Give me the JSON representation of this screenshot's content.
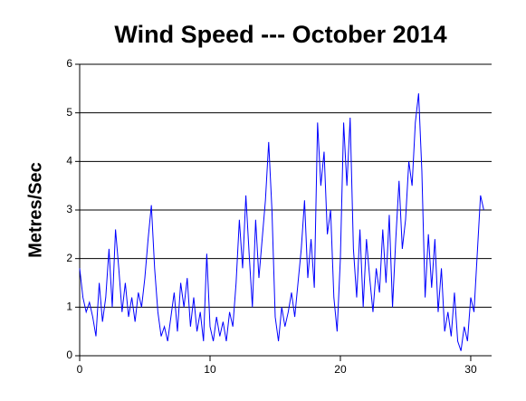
{
  "chart_data": {
    "type": "line",
    "title": "Wind Speed --- October 2014",
    "y_label": "Metres/Sec",
    "x": [
      0,
      0.25,
      0.5,
      0.75,
      1,
      1.25,
      1.5,
      1.75,
      2,
      2.25,
      2.5,
      2.75,
      3,
      3.25,
      3.5,
      3.75,
      4,
      4.25,
      4.5,
      4.75,
      5,
      5.25,
      5.5,
      5.75,
      6,
      6.25,
      6.5,
      6.75,
      7,
      7.25,
      7.5,
      7.75,
      8,
      8.25,
      8.5,
      8.75,
      9,
      9.25,
      9.5,
      9.75,
      10,
      10.25,
      10.5,
      10.75,
      11,
      11.25,
      11.5,
      11.75,
      12,
      12.25,
      12.5,
      12.75,
      13,
      13.25,
      13.5,
      13.75,
      14,
      14.25,
      14.5,
      14.75,
      15,
      15.25,
      15.5,
      15.75,
      16,
      16.25,
      16.5,
      16.75,
      17,
      17.25,
      17.5,
      17.75,
      18,
      18.25,
      18.5,
      18.75,
      19,
      19.25,
      19.5,
      19.75,
      20,
      20.25,
      20.5,
      20.75,
      21,
      21.25,
      21.5,
      21.75,
      22,
      22.25,
      22.5,
      22.75,
      23,
      23.25,
      23.5,
      23.75,
      24,
      24.25,
      24.5,
      24.75,
      25,
      25.25,
      25.5,
      25.75,
      26,
      26.25,
      26.5,
      26.75,
      27,
      27.25,
      27.5,
      27.75,
      28,
      28.25,
      28.5,
      28.75,
      29,
      29.25,
      29.5,
      29.75,
      30,
      30.25,
      30.5,
      30.75,
      31
    ],
    "series": [
      {
        "name": "Wind speed",
        "color": "#0000ff",
        "values": [
          1.8,
          1.2,
          0.9,
          1.1,
          0.8,
          0.4,
          1.5,
          0.7,
          1.2,
          2.2,
          1.0,
          2.6,
          1.8,
          0.9,
          1.5,
          0.8,
          1.2,
          0.7,
          1.3,
          1.0,
          1.6,
          2.4,
          3.1,
          1.8,
          0.9,
          0.4,
          0.6,
          0.3,
          0.8,
          1.3,
          0.5,
          1.5,
          1.0,
          1.6,
          0.6,
          1.2,
          0.5,
          0.9,
          0.3,
          2.1,
          0.6,
          0.3,
          0.8,
          0.4,
          0.7,
          0.3,
          0.9,
          0.6,
          1.5,
          2.8,
          1.8,
          3.3,
          2.1,
          1.0,
          2.8,
          1.6,
          2.4,
          3.2,
          4.4,
          3.0,
          0.8,
          0.3,
          1.0,
          0.6,
          0.9,
          1.3,
          0.8,
          1.5,
          2.2,
          3.2,
          1.6,
          2.4,
          1.4,
          4.8,
          3.5,
          4.2,
          2.5,
          3.0,
          1.2,
          0.5,
          2.0,
          4.8,
          3.5,
          4.9,
          2.2,
          1.2,
          2.6,
          1.0,
          2.4,
          1.6,
          0.9,
          1.8,
          1.3,
          2.6,
          1.5,
          2.9,
          1.0,
          2.4,
          3.6,
          2.2,
          2.8,
          4.0,
          3.5,
          4.8,
          5.4,
          3.8,
          1.2,
          2.5,
          1.4,
          2.4,
          0.9,
          1.8,
          0.5,
          0.9,
          0.4,
          1.3,
          0.3,
          0.1,
          0.6,
          0.3,
          1.2,
          0.9,
          2.1,
          3.3,
          3.0
        ]
      }
    ],
    "xlim": [
      0,
      31.6
    ],
    "xticks": [
      0,
      10,
      20,
      30
    ],
    "ylim": [
      0,
      6
    ],
    "yticks": [
      0,
      1,
      2,
      3,
      4,
      5,
      6
    ],
    "grid": true
  }
}
